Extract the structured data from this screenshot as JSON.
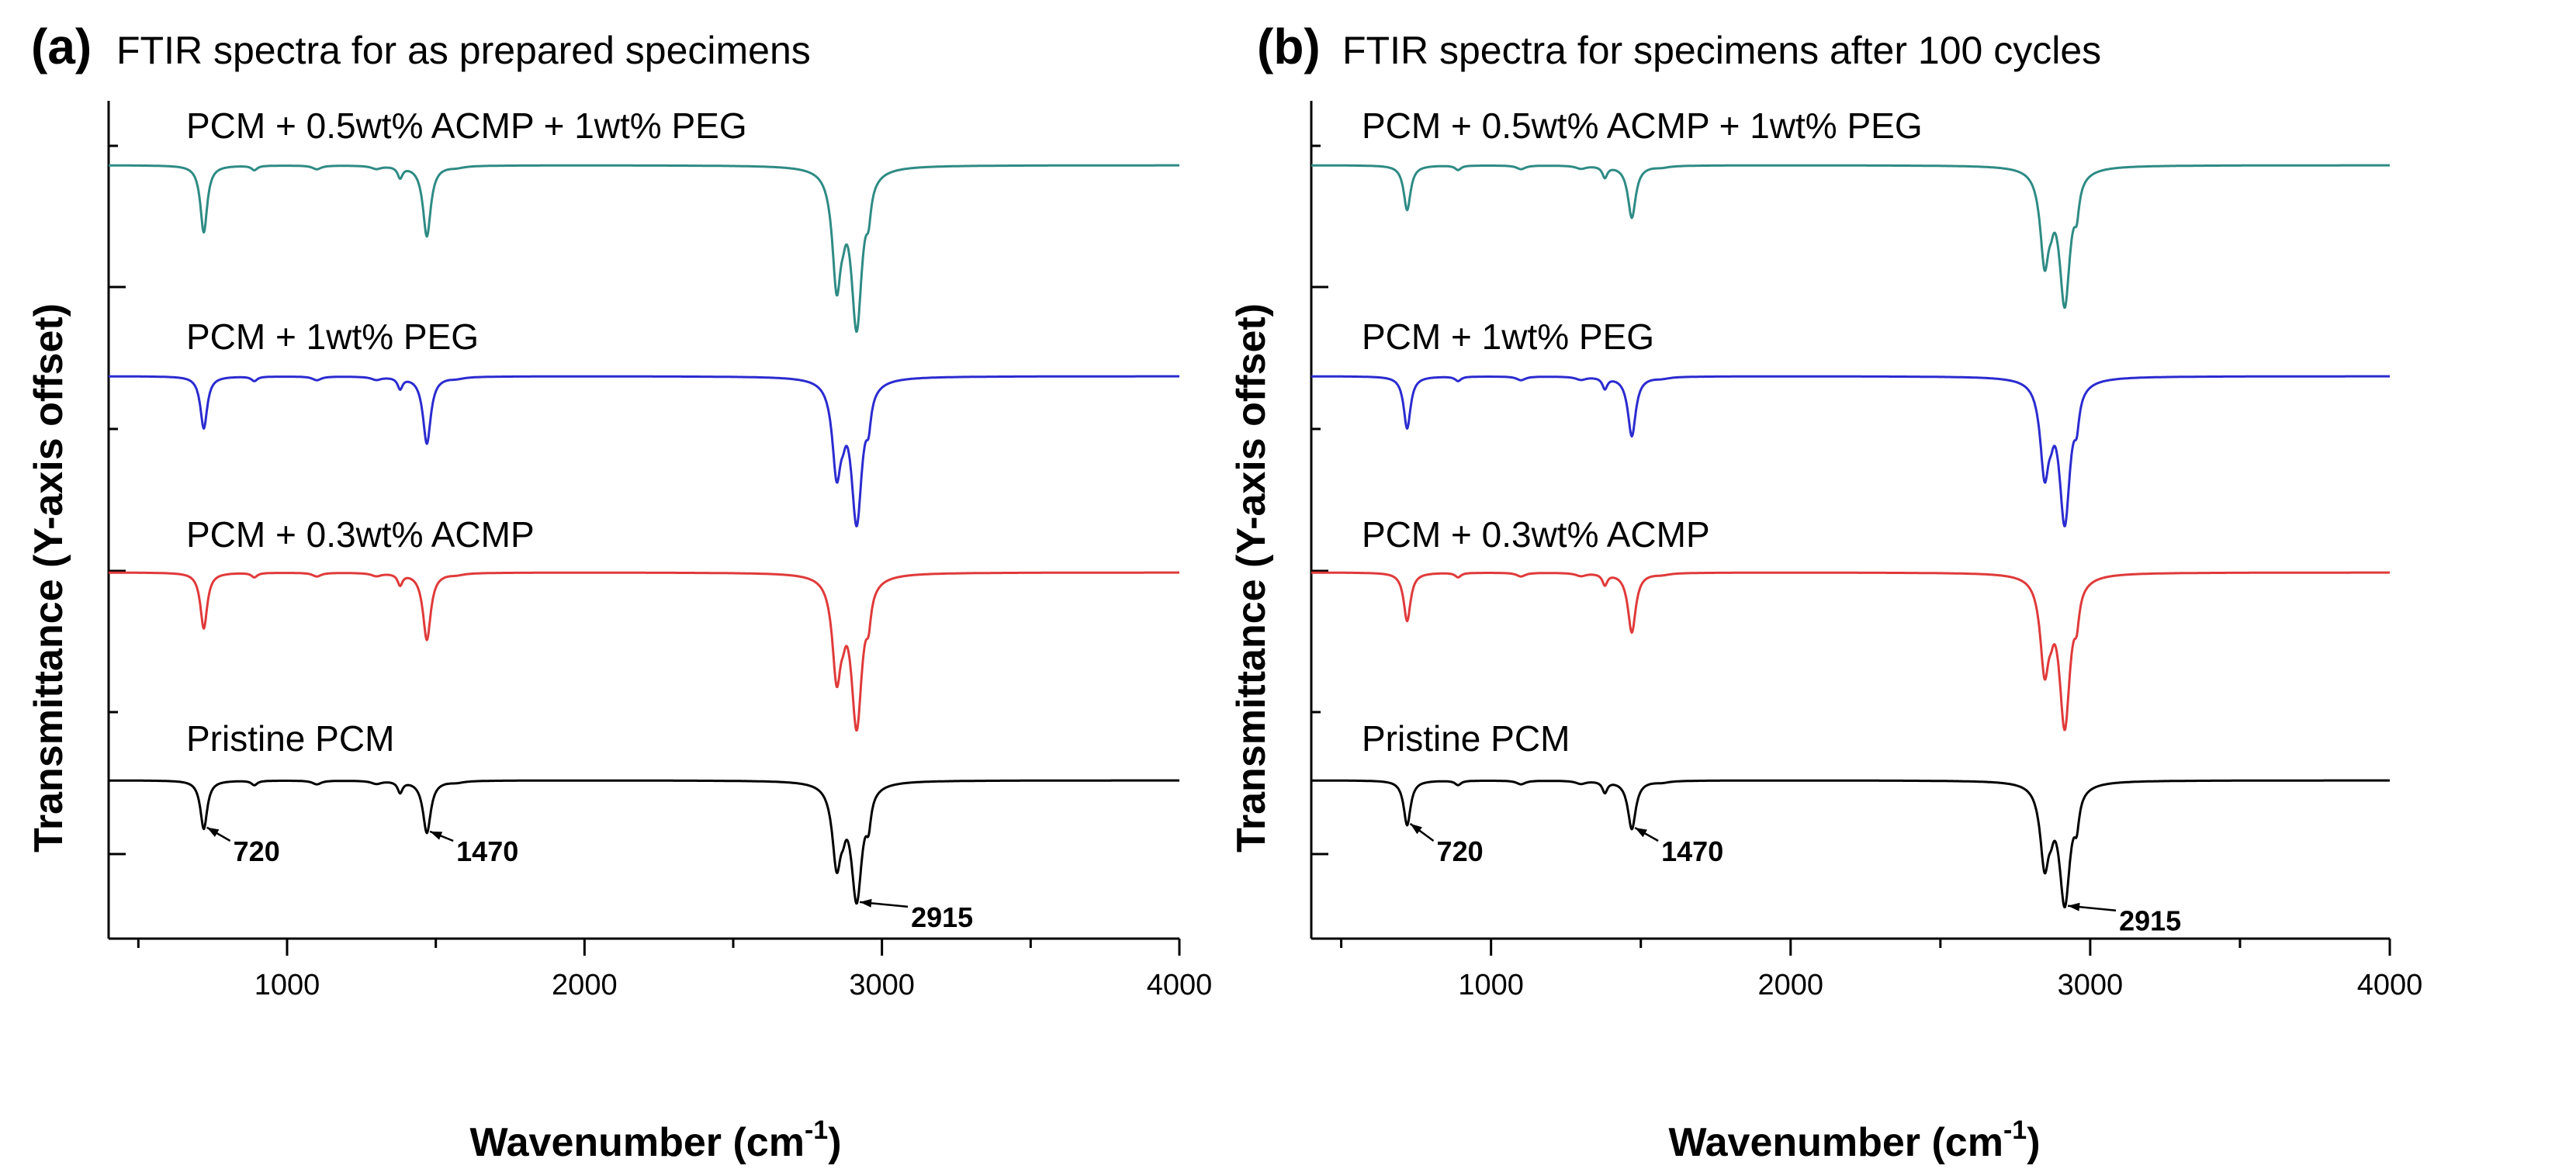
{
  "chart_data": [
    {
      "type": "line",
      "panel_letter": "(a)",
      "title": "FTIR spectra for as prepared specimens",
      "xlabel": "Wavenumber (cm",
      "xlabel_superscript": "-1",
      "xlabel_close": ")",
      "ylabel": "Transmittance (Y-axis offset)",
      "xlim": [
        400,
        4000
      ],
      "xticks": [
        1000,
        2000,
        3000,
        4000
      ],
      "xtick_labels": [
        "1000",
        "2000",
        "3000",
        "4000"
      ],
      "series": [
        {
          "name": "PCM + 0.5wt% ACMP + 1wt% PEG",
          "color": "#2e8b84",
          "baseline": 0.0,
          "depths": {
            "720": 0.9,
            "1470": 0.95,
            "2848": 1.5,
            "2915": 2.1
          }
        },
        {
          "name": "PCM + 1wt% PEG",
          "color": "#2b2bd0",
          "baseline": -1.5,
          "depths": {
            "720": 0.7,
            "1470": 0.9,
            "2848": 1.2,
            "2915": 1.9
          }
        },
        {
          "name": "PCM + 0.3wt% ACMP",
          "color": "#e03a3a",
          "baseline": -2.8,
          "depths": {
            "720": 0.75,
            "1470": 0.9,
            "2848": 1.3,
            "2915": 2.0
          }
        },
        {
          "name": "Pristine PCM",
          "color": "#000000",
          "baseline": -4.3,
          "depths": {
            "720": 0.65,
            "1470": 0.7,
            "2848": 1.05,
            "2915": 1.55
          }
        }
      ],
      "annotations": [
        {
          "text": "720",
          "x": 720
        },
        {
          "text": "1470",
          "x": 1470
        },
        {
          "text": "2915",
          "x": 2915
        }
      ]
    },
    {
      "type": "line",
      "panel_letter": "(b)",
      "title": "FTIR spectra for specimens after 100 cycles",
      "xlabel": "Wavenumber (cm",
      "xlabel_superscript": "-1",
      "xlabel_close": ")",
      "ylabel": "Transmittance (Y-axis offset)",
      "xlim": [
        400,
        4000
      ],
      "xticks": [
        1000,
        2000,
        3000,
        4000
      ],
      "xtick_labels": [
        "1000",
        "2000",
        "3000",
        "4000"
      ],
      "series": [
        {
          "name": "PCM + 0.5wt% ACMP + 1wt% PEG",
          "color": "#2e8b84",
          "baseline": 0.0,
          "depths": {
            "720": 0.6,
            "1470": 0.7,
            "2848": 1.2,
            "2915": 1.8
          }
        },
        {
          "name": "PCM + 1wt% PEG",
          "color": "#2b2bd0",
          "baseline": -1.5,
          "depths": {
            "720": 0.7,
            "1470": 0.8,
            "2848": 1.2,
            "2915": 1.9
          }
        },
        {
          "name": "PCM + 0.3wt% ACMP",
          "color": "#e03a3a",
          "baseline": -2.8,
          "depths": {
            "720": 0.65,
            "1470": 0.8,
            "2848": 1.2,
            "2915": 2.0
          }
        },
        {
          "name": "Pristine PCM",
          "color": "#000000",
          "baseline": -4.3,
          "depths": {
            "720": 0.6,
            "1470": 0.65,
            "2848": 1.05,
            "2915": 1.6
          }
        }
      ],
      "annotations": [
        {
          "text": "720",
          "x": 720
        },
        {
          "text": "1470",
          "x": 1470
        },
        {
          "text": "2915",
          "x": 2915
        }
      ]
    }
  ]
}
